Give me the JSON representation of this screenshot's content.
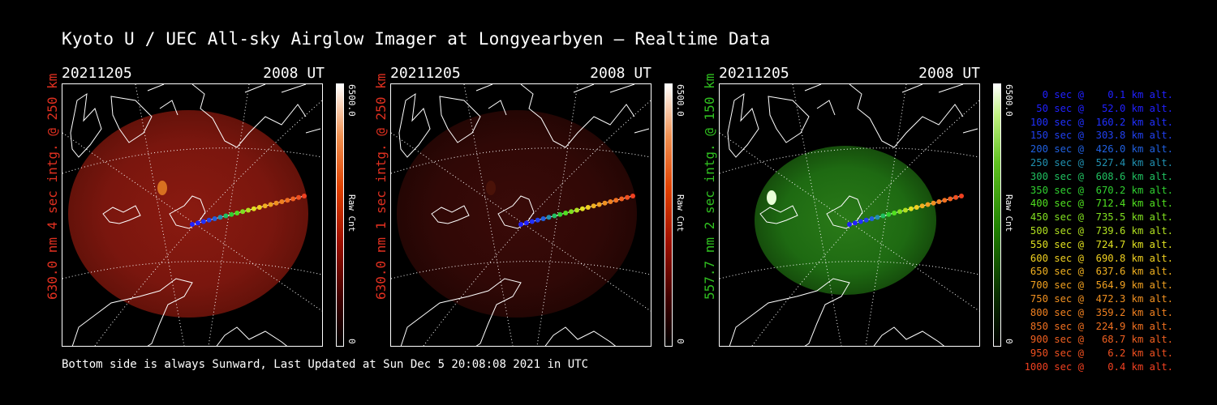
{
  "title": "Kyoto U / UEC All-sky Airglow Imager at Longyearbyen — Realtime Data",
  "panels": [
    {
      "date": "20211205",
      "time": "2008 UT",
      "ylabel": "630.0 nm 4 sec intg. @ 250 km",
      "label_color": "#e03020",
      "cbar_max": "6500.0",
      "cbar_min": "0",
      "cbar_unit": "Raw Cnt",
      "cmap": "red"
    },
    {
      "date": "20211205",
      "time": "2008 UT",
      "ylabel": "630.0 nm 1 sec intg. @ 250 km",
      "label_color": "#e03020",
      "cbar_max": "6500.0",
      "cbar_min": "0",
      "cbar_unit": "Raw Cnt",
      "cmap": "red"
    },
    {
      "date": "20211205",
      "time": "2008 UT",
      "ylabel": "557.7 nm 2 sec intg. @ 150 km",
      "label_color": "#30c020",
      "cbar_max": "6500.0",
      "cbar_min": "0",
      "cbar_unit": "Raw Cnt",
      "cmap": "green"
    }
  ],
  "footer": "Bottom side is always Sunward, Last Updated at Sun Dec  5 20:08:08 2021 in UTC",
  "legend": [
    {
      "text": "   0 sec @    0.1 km alt.",
      "color": "#2020ff"
    },
    {
      "text": "  50 sec @   52.0 km alt.",
      "color": "#2020ff"
    },
    {
      "text": " 100 sec @  160.2 km alt.",
      "color": "#2030ff"
    },
    {
      "text": " 150 sec @  303.8 km alt.",
      "color": "#2040f0"
    },
    {
      "text": " 200 sec @  426.0 km alt.",
      "color": "#2060e0"
    },
    {
      "text": " 250 sec @  527.4 km alt.",
      "color": "#2090b0"
    },
    {
      "text": " 300 sec @  608.6 km alt.",
      "color": "#20c060"
    },
    {
      "text": " 350 sec @  670.2 km alt.",
      "color": "#30d030"
    },
    {
      "text": " 400 sec @  712.4 km alt.",
      "color": "#50e020"
    },
    {
      "text": " 450 sec @  735.5 km alt.",
      "color": "#80e020"
    },
    {
      "text": " 500 sec @  739.6 km alt.",
      "color": "#b0e020"
    },
    {
      "text": " 550 sec @  724.7 km alt.",
      "color": "#e0e020"
    },
    {
      "text": " 600 sec @  690.8 km alt.",
      "color": "#f0d020"
    },
    {
      "text": " 650 sec @  637.6 km alt.",
      "color": "#f0b020"
    },
    {
      "text": " 700 sec @  564.9 km alt.",
      "color": "#f0a020"
    },
    {
      "text": " 750 sec @  472.3 km alt.",
      "color": "#f09020"
    },
    {
      "text": " 800 sec @  359.2 km alt.",
      "color": "#f08020"
    },
    {
      "text": " 850 sec @  224.9 km alt.",
      "color": "#f07020"
    },
    {
      "text": " 900 sec @   68.7 km alt.",
      "color": "#f06020"
    },
    {
      "text": " 950 sec @    6.2 km alt.",
      "color": "#f05020"
    },
    {
      "text": "1000 sec @    0.4 km alt.",
      "color": "#f04020"
    }
  ]
}
